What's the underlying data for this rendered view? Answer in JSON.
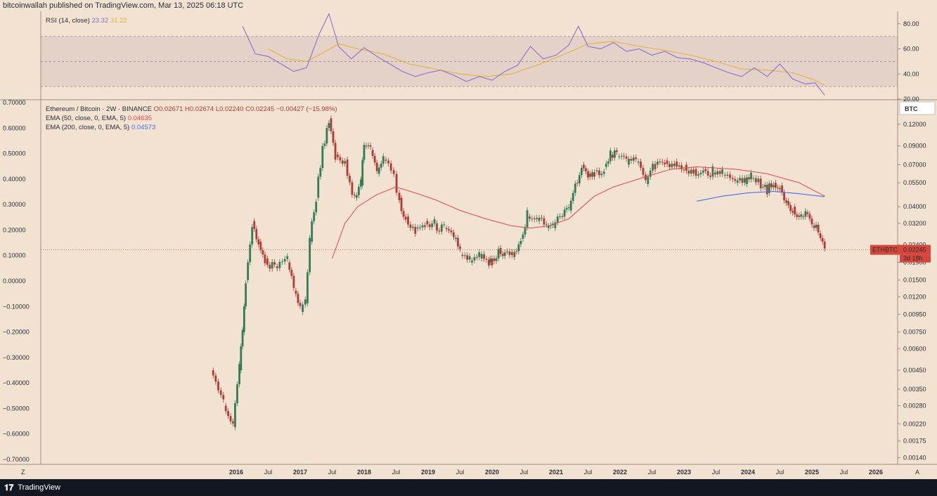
{
  "header": {
    "text": "bitcoinwallah published on TradingView.com, Mar 13, 2025 06:18 UTC"
  },
  "footer": {
    "brand": "TradingView",
    "logo": "tradingview-logo"
  },
  "colors": {
    "bg": "#f2e2d1",
    "up": "#2f7d56",
    "down": "#b23a33",
    "rsi": "#8a6fd1",
    "rsi_ma": "#e4b43c",
    "ema50": "#e8474c",
    "ema200": "#4a6ef0",
    "rsi_band": "#d9c5c3",
    "price_tag": "#d7463a"
  },
  "rsi_panel": {
    "legend_label": "RSI (14, close)",
    "rsi_value": "23.32",
    "ma_value": "31.22",
    "y_ticks": [
      "80.00",
      "60.00",
      "40.00",
      "20.00"
    ],
    "band": [
      30,
      70
    ]
  },
  "main_panel": {
    "symbol_line": "Ethereum / Bitcoin · 2W · BINANCE",
    "ohlc": {
      "o": "O0.02671",
      "h": "H0.02674",
      "l": "L0.02240",
      "c": "C0.02245",
      "chg": "−0.00427 (−15.98%)"
    },
    "ema50_label": "EMA (50, close, 0, EMA, 5)",
    "ema50_value": "0.04635",
    "ema200_label": "EMA (200, close, 0, EMA, 5)",
    "ema200_value": "0.04573",
    "currency_button": "BTC",
    "left_axis": [
      "0.70000",
      "0.60000",
      "0.50000",
      "0.40000",
      "0.30000",
      "0.20000",
      "0.10000",
      "0.00000",
      "−0.10000",
      "−0.20000",
      "−0.30000",
      "−0.40000",
      "−0.50000",
      "−0.60000",
      "−0.70000"
    ],
    "right_axis": [
      "0.12000",
      "0.09000",
      "0.07000",
      "0.05500",
      "0.04000",
      "0.03200",
      "0.02400",
      "0.01900",
      "0.01500",
      "0.01200",
      "0.00950",
      "0.00750",
      "0.00600",
      "0.00450",
      "0.00350",
      "0.00280",
      "0.00220",
      "0.00175",
      "0.00140"
    ],
    "price_tag": {
      "symbol": "ETHBTC",
      "value": "0.02245",
      "countdown": "3d 18h"
    },
    "x_axis": [
      "2016",
      "Jul",
      "2017",
      "Jul",
      "2018",
      "Jul",
      "2019",
      "Jul",
      "2020",
      "Jul",
      "2021",
      "Jul",
      "2022",
      "Jul",
      "2023",
      "Jul",
      "2024",
      "Jul",
      "2025",
      "Jul",
      "2026"
    ],
    "corner_left": "Z",
    "corner_right": "A"
  },
  "chart_data": [
    {
      "type": "candlestick",
      "title": "Ethereum / Bitcoin · 2W · BINANCE",
      "scale": "log",
      "ylim": [
        0.0013,
        0.165
      ],
      "x_start": "2015-08-15",
      "x_end": "2025-03-13",
      "points": [
        [
          2015.6,
          0.0045
        ],
        [
          2015.8,
          0.0028
        ],
        [
          2015.95,
          0.0021
        ],
        [
          2016.05,
          0.0045
        ],
        [
          2016.1,
          0.0075
        ],
        [
          2016.15,
          0.015
        ],
        [
          2016.25,
          0.033
        ],
        [
          2016.35,
          0.025
        ],
        [
          2016.45,
          0.02
        ],
        [
          2016.6,
          0.018
        ],
        [
          2016.8,
          0.019
        ],
        [
          2016.9,
          0.013
        ],
        [
          2017.0,
          0.0098
        ],
        [
          2017.08,
          0.011
        ],
        [
          2017.15,
          0.025
        ],
        [
          2017.25,
          0.045
        ],
        [
          2017.35,
          0.09
        ],
        [
          2017.45,
          0.13
        ],
        [
          2017.55,
          0.08
        ],
        [
          2017.7,
          0.075
        ],
        [
          2017.85,
          0.045
        ],
        [
          2017.95,
          0.053
        ],
        [
          2018.0,
          0.09
        ],
        [
          2018.1,
          0.085
        ],
        [
          2018.2,
          0.062
        ],
        [
          2018.3,
          0.075
        ],
        [
          2018.42,
          0.065
        ],
        [
          2018.55,
          0.045
        ],
        [
          2018.65,
          0.035
        ],
        [
          2018.8,
          0.03
        ],
        [
          2018.95,
          0.033
        ],
        [
          2019.1,
          0.032
        ],
        [
          2019.25,
          0.03
        ],
        [
          2019.4,
          0.026
        ],
        [
          2019.5,
          0.021
        ],
        [
          2019.65,
          0.019
        ],
        [
          2019.8,
          0.02
        ],
        [
          2019.95,
          0.019
        ],
        [
          2020.0,
          0.02
        ],
        [
          2020.1,
          0.023
        ],
        [
          2020.2,
          0.022
        ],
        [
          2020.35,
          0.022
        ],
        [
          2020.45,
          0.026
        ],
        [
          2020.55,
          0.035
        ],
        [
          2020.7,
          0.033
        ],
        [
          2020.85,
          0.03
        ],
        [
          2020.95,
          0.03
        ],
        [
          2021.1,
          0.035
        ],
        [
          2021.2,
          0.038
        ],
        [
          2021.3,
          0.055
        ],
        [
          2021.4,
          0.07
        ],
        [
          2021.5,
          0.062
        ],
        [
          2021.6,
          0.064
        ],
        [
          2021.75,
          0.068
        ],
        [
          2021.85,
          0.08
        ],
        [
          2021.95,
          0.078
        ],
        [
          2022.1,
          0.07
        ],
        [
          2022.25,
          0.072
        ],
        [
          2022.4,
          0.054
        ],
        [
          2022.55,
          0.07
        ],
        [
          2022.7,
          0.074
        ],
        [
          2022.85,
          0.073
        ],
        [
          2023.0,
          0.07
        ],
        [
          2023.15,
          0.066
        ],
        [
          2023.3,
          0.066
        ],
        [
          2023.45,
          0.063
        ],
        [
          2023.6,
          0.061
        ],
        [
          2023.8,
          0.055
        ],
        [
          2023.95,
          0.054
        ],
        [
          2024.05,
          0.058
        ],
        [
          2024.2,
          0.052
        ],
        [
          2024.3,
          0.048
        ],
        [
          2024.4,
          0.055
        ],
        [
          2024.5,
          0.053
        ],
        [
          2024.6,
          0.043
        ],
        [
          2024.7,
          0.04
        ],
        [
          2024.8,
          0.036
        ],
        [
          2024.9,
          0.037
        ],
        [
          2025.0,
          0.031
        ],
        [
          2025.1,
          0.028
        ],
        [
          2025.2,
          0.0225
        ]
      ]
    },
    {
      "type": "line",
      "name": "EMA (50, close, 0, EMA, 5)",
      "x_start": "2017-07-01",
      "points": [
        [
          2017.5,
          0.02
        ],
        [
          2017.7,
          0.032
        ],
        [
          2017.9,
          0.04
        ],
        [
          2018.2,
          0.047
        ],
        [
          2018.5,
          0.052
        ],
        [
          2018.8,
          0.048
        ],
        [
          2019.1,
          0.044
        ],
        [
          2019.5,
          0.038
        ],
        [
          2019.9,
          0.034
        ],
        [
          2020.3,
          0.031
        ],
        [
          2020.6,
          0.03
        ],
        [
          2020.9,
          0.031
        ],
        [
          2021.2,
          0.034
        ],
        [
          2021.6,
          0.046
        ],
        [
          2021.9,
          0.052
        ],
        [
          2022.3,
          0.058
        ],
        [
          2022.8,
          0.066
        ],
        [
          2023.2,
          0.068
        ],
        [
          2023.8,
          0.066
        ],
        [
          2024.3,
          0.062
        ],
        [
          2024.8,
          0.055
        ],
        [
          2025.2,
          0.046
        ]
      ]
    },
    {
      "type": "line",
      "name": "EMA (200, close, 0, EMA, 5)",
      "x_start": "2023-03-01",
      "points": [
        [
          2023.2,
          0.043
        ],
        [
          2023.6,
          0.046
        ],
        [
          2024.0,
          0.048
        ],
        [
          2024.4,
          0.049
        ],
        [
          2024.8,
          0.0475
        ],
        [
          2025.2,
          0.0457
        ]
      ]
    },
    {
      "type": "line",
      "name": "RSI (14, close)",
      "ylim": [
        20,
        90
      ],
      "points": [
        [
          2016.1,
          78
        ],
        [
          2016.3,
          56
        ],
        [
          2016.5,
          54
        ],
        [
          2016.7,
          48
        ],
        [
          2016.9,
          42
        ],
        [
          2017.1,
          45
        ],
        [
          2017.3,
          72
        ],
        [
          2017.45,
          88
        ],
        [
          2017.6,
          62
        ],
        [
          2017.8,
          52
        ],
        [
          2018.0,
          61
        ],
        [
          2018.2,
          54
        ],
        [
          2018.4,
          48
        ],
        [
          2018.6,
          42
        ],
        [
          2018.8,
          38
        ],
        [
          2019.0,
          41
        ],
        [
          2019.2,
          43
        ],
        [
          2019.4,
          39
        ],
        [
          2019.6,
          34
        ],
        [
          2019.8,
          38
        ],
        [
          2020.0,
          35
        ],
        [
          2020.2,
          42
        ],
        [
          2020.4,
          47
        ],
        [
          2020.6,
          62
        ],
        [
          2020.8,
          52
        ],
        [
          2021.0,
          55
        ],
        [
          2021.2,
          63
        ],
        [
          2021.35,
          78
        ],
        [
          2021.5,
          62
        ],
        [
          2021.7,
          60
        ],
        [
          2021.9,
          65
        ],
        [
          2022.1,
          58
        ],
        [
          2022.3,
          60
        ],
        [
          2022.5,
          55
        ],
        [
          2022.7,
          58
        ],
        [
          2022.9,
          53
        ],
        [
          2023.1,
          52
        ],
        [
          2023.3,
          49
        ],
        [
          2023.5,
          45
        ],
        [
          2023.7,
          41
        ],
        [
          2023.9,
          38
        ],
        [
          2024.1,
          45
        ],
        [
          2024.3,
          38
        ],
        [
          2024.5,
          48
        ],
        [
          2024.7,
          36
        ],
        [
          2024.9,
          32
        ],
        [
          2025.05,
          33
        ],
        [
          2025.2,
          23
        ]
      ]
    },
    {
      "type": "line",
      "name": "RSI MA",
      "points": [
        [
          2016.5,
          60
        ],
        [
          2016.8,
          52
        ],
        [
          2017.1,
          50
        ],
        [
          2017.4,
          58
        ],
        [
          2017.6,
          64
        ],
        [
          2017.9,
          60
        ],
        [
          2018.3,
          56
        ],
        [
          2018.7,
          48
        ],
        [
          2019.1,
          44
        ],
        [
          2019.5,
          40
        ],
        [
          2019.9,
          38
        ],
        [
          2020.3,
          40
        ],
        [
          2020.7,
          47
        ],
        [
          2021.1,
          55
        ],
        [
          2021.5,
          64
        ],
        [
          2021.9,
          66
        ],
        [
          2022.3,
          62
        ],
        [
          2022.7,
          59
        ],
        [
          2023.1,
          55
        ],
        [
          2023.5,
          50
        ],
        [
          2023.9,
          44
        ],
        [
          2024.3,
          43
        ],
        [
          2024.7,
          41
        ],
        [
          2025.0,
          36
        ],
        [
          2025.2,
          31
        ]
      ]
    }
  ]
}
